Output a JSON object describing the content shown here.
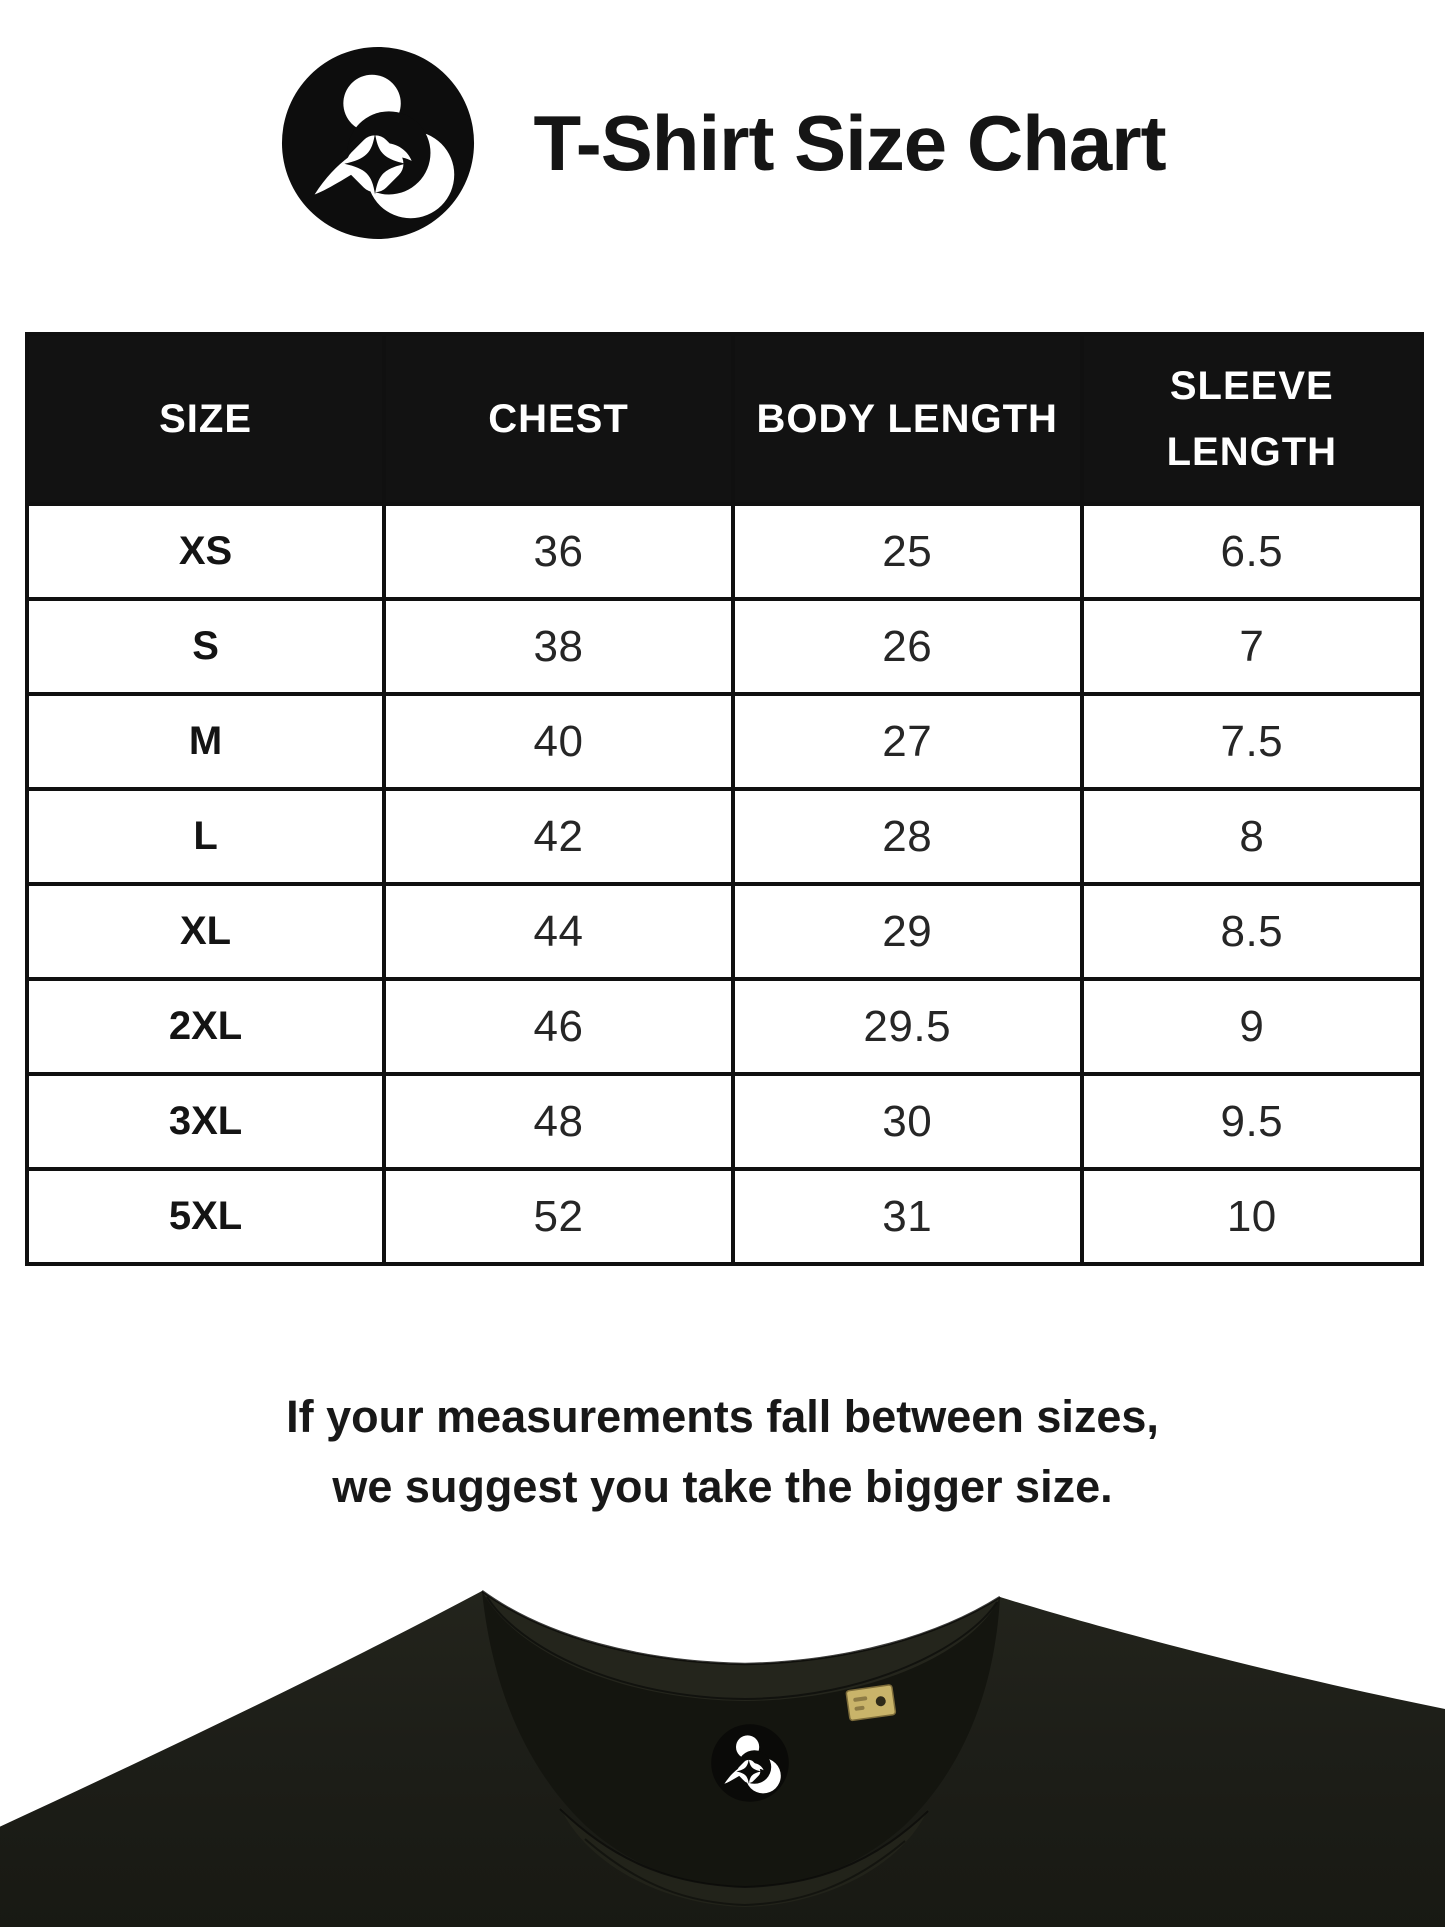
{
  "header": {
    "title": "T-Shirt Size Chart",
    "logo_icon": "mother-and-child-logo",
    "logo_color": "#0d0d0d"
  },
  "size_table": {
    "columns": [
      "SIZE",
      "CHEST",
      "BODY LENGTH",
      "SLEEVE LENGTH"
    ],
    "rows": [
      {
        "size": "XS",
        "chest": "36",
        "body_length": "25",
        "sleeve_length": "6.5"
      },
      {
        "size": "S",
        "chest": "38",
        "body_length": "26",
        "sleeve_length": "7"
      },
      {
        "size": "M",
        "chest": "40",
        "body_length": "27",
        "sleeve_length": "7.5"
      },
      {
        "size": "L",
        "chest": "42",
        "body_length": "28",
        "sleeve_length": "8"
      },
      {
        "size": "XL",
        "chest": "44",
        "body_length": "29",
        "sleeve_length": "8.5"
      },
      {
        "size": "2XL",
        "chest": "46",
        "body_length": "29.5",
        "sleeve_length": "9"
      },
      {
        "size": "3XL",
        "chest": "48",
        "body_length": "30",
        "sleeve_length": "9.5"
      },
      {
        "size": "5XL",
        "chest": "52",
        "body_length": "31",
        "sleeve_length": "10"
      }
    ],
    "header_bg": "#121212",
    "header_text_color": "#ffffff",
    "border_color": "#101010"
  },
  "note": {
    "line1": "If your measurements fall between sizes,",
    "line2": "we suggest you take the bigger size."
  },
  "shirt_photo": {
    "neck_label_icon": "mother-and-child-logo",
    "collar_tag_icon": "woven-brand-tag",
    "fabric_color": "#1d1e18",
    "neck_interior_color": "#14150f",
    "collar_band_color": "#24251c",
    "tag_color": "#c9b46a"
  },
  "chart_data": {
    "type": "table",
    "title": "T-Shirt Size Chart",
    "columns": [
      "SIZE",
      "CHEST",
      "BODY LENGTH",
      "SLEEVE LENGTH"
    ],
    "rows": [
      [
        "XS",
        36,
        25,
        6.5
      ],
      [
        "S",
        38,
        26,
        7
      ],
      [
        "M",
        40,
        27,
        7.5
      ],
      [
        "L",
        42,
        28,
        8
      ],
      [
        "XL",
        44,
        29,
        8.5
      ],
      [
        "2XL",
        46,
        29.5,
        9
      ],
      [
        "3XL",
        48,
        30,
        9.5
      ],
      [
        "5XL",
        52,
        31,
        10
      ]
    ]
  }
}
